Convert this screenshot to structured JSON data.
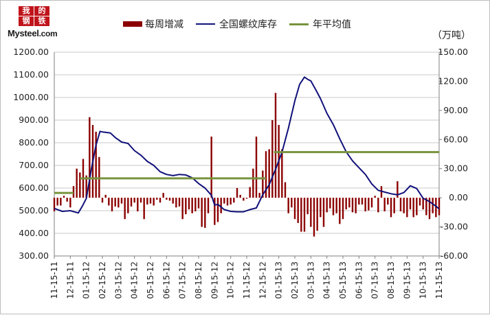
{
  "logo": {
    "cjk_chars": [
      "我",
      "的",
      "钢",
      "铁"
    ],
    "text": "Mysteel",
    "domain": ".com"
  },
  "legend": {
    "bars": "每周增减",
    "line": "全国螺纹库存",
    "avg": "年平均值"
  },
  "unit": "（万吨）",
  "colors": {
    "bars": "#8b0000",
    "line": "#10107a",
    "avg": "#77933c",
    "grid": "#c8c8c8",
    "axis": "#7f7f7f"
  },
  "chart_data": {
    "type": "bar+line",
    "title": "",
    "grid": true,
    "legend_position": "top",
    "y_left": {
      "min": 300,
      "max": 1200,
      "ticks": [
        "300.00",
        "400.00",
        "500.00",
        "600.00",
        "700.00",
        "800.00",
        "900.00",
        "1000.00",
        "1100.00",
        "1200.00"
      ]
    },
    "y_right": {
      "min": -60,
      "max": 150,
      "ticks": [
        "-60.00",
        "-30.00",
        "0.00",
        "30.00",
        "60.00",
        "90.00",
        "120.00",
        "150.00"
      ]
    },
    "x_ticks": [
      "11-15-11",
      "12-15-11",
      "01-15-12",
      "02-15-12",
      "03-15-12",
      "04-15-12",
      "05-15-12",
      "06-15-12",
      "07-15-12",
      "08-15-12",
      "09-15-12",
      "10-15-12",
      "11-15-12",
      "12-15-12",
      "01-15-13",
      "02-15-13",
      "03-15-13",
      "04-15-13",
      "05-15-13",
      "06-15-13",
      "07-15-13",
      "08-15-13",
      "09-15-13",
      "10-15-13",
      "11-15-13"
    ],
    "series": [
      {
        "name": "每周增减",
        "kind": "bar",
        "axis": "right",
        "x": [
          0.0,
          0.2,
          0.4,
          0.6,
          0.8,
          1.0,
          1.2,
          1.4,
          1.6,
          1.8,
          2.0,
          2.2,
          2.4,
          2.6,
          2.8,
          3.0,
          3.2,
          3.4,
          3.6,
          3.8,
          4.0,
          4.2,
          4.4,
          4.6,
          4.8,
          5.0,
          5.2,
          5.4,
          5.6,
          5.8,
          6.0,
          6.2,
          6.4,
          6.6,
          6.8,
          7.0,
          7.2,
          7.4,
          7.6,
          7.8,
          8.0,
          8.2,
          8.4,
          8.6,
          8.8,
          9.0,
          9.2,
          9.4,
          9.6,
          9.8,
          10.0,
          10.2,
          10.4,
          10.6,
          10.8,
          11.0,
          11.2,
          11.4,
          11.6,
          11.8,
          12.0,
          12.2,
          12.4,
          12.6,
          12.8,
          13.0,
          13.2,
          13.4,
          13.6,
          13.8,
          14.0,
          14.2,
          14.4,
          14.6,
          14.8,
          15.0,
          15.2,
          15.4,
          15.6,
          15.8,
          16.0,
          16.2,
          16.4,
          16.6,
          16.8,
          17.0,
          17.2,
          17.4,
          17.6,
          17.8,
          18.0,
          18.2,
          18.4,
          18.6,
          18.8,
          19.0,
          19.2,
          19.4,
          19.6,
          19.8,
          20.0,
          20.2,
          20.4,
          20.6,
          20.8,
          21.0,
          21.2,
          21.4,
          21.6,
          21.8,
          22.0,
          22.2,
          22.4,
          22.6,
          22.8,
          23.0,
          23.2,
          23.4,
          23.6,
          23.8,
          24.0
        ],
        "values": [
          -14,
          -8,
          -8,
          2,
          -4,
          -10,
          12,
          30,
          26,
          40,
          23,
          83,
          75,
          68,
          42,
          -5,
          3,
          -8,
          -14,
          -9,
          -10,
          -6,
          -22,
          -16,
          -9,
          -5,
          -14,
          -5,
          -22,
          -7,
          -6,
          -8,
          -2,
          -5,
          5,
          -2,
          -3,
          -6,
          -10,
          -9,
          -22,
          -17,
          -12,
          -16,
          -14,
          -11,
          -30,
          -31,
          -16,
          63,
          -28,
          -25,
          -16,
          -6,
          -8,
          -7,
          -5,
          10,
          3,
          -3,
          -1,
          11,
          30,
          63,
          5,
          28,
          48,
          50,
          80,
          108,
          75,
          50,
          16,
          -16,
          -10,
          -22,
          -26,
          -35,
          -35,
          -17,
          -30,
          -40,
          -34,
          -20,
          -30,
          -15,
          -11,
          -18,
          -16,
          -27,
          -22,
          -12,
          -10,
          -15,
          -16,
          -7,
          -7,
          -14,
          -13,
          -10,
          2,
          -15,
          12,
          -14,
          -7,
          -20,
          -16,
          17,
          -14,
          -16,
          -20,
          -12,
          -20,
          -18,
          -8,
          -12,
          -18,
          -22,
          -16,
          -20,
          -18
        ]
      },
      {
        "name": "全国螺纹库存",
        "kind": "line",
        "axis": "left",
        "x": [
          0,
          0.5,
          1,
          1.5,
          1.75,
          2,
          2.3,
          2.6,
          2.85,
          3,
          3.5,
          3.8,
          4.2,
          4.6,
          5,
          5.4,
          5.8,
          6.2,
          6.6,
          7,
          7.4,
          7.8,
          8.2,
          8.6,
          9,
          9.4,
          9.8,
          10.0,
          10.2,
          10.6,
          11,
          11.4,
          11.8,
          12.2,
          12.6,
          13,
          13.4,
          13.8,
          14.2,
          14.6,
          15,
          15.3,
          15.6,
          15.8,
          16.0,
          16.3,
          16.6,
          17,
          17.4,
          17.8,
          18.2,
          18.6,
          19,
          19.4,
          19.8,
          20.2,
          20.6,
          21,
          21.4,
          21.8,
          22.2,
          22.6,
          23,
          23.4,
          23.8,
          24
        ],
        "values": [
          510,
          497,
          500,
          490,
          520,
          555,
          680,
          790,
          850,
          848,
          843,
          823,
          803,
          797,
          765,
          745,
          718,
          700,
          672,
          660,
          655,
          660,
          658,
          645,
          620,
          600,
          568,
          525,
          528,
          505,
          497,
          495,
          495,
          505,
          512,
          570,
          615,
          683,
          758,
          865,
          985,
          1058,
          1090,
          1080,
          1073,
          1035,
          995,
          930,
          880,
          818,
          760,
          720,
          690,
          660,
          618,
          590,
          582,
          575,
          570,
          580,
          610,
          598,
          555,
          540,
          520,
          508
        ]
      },
      {
        "name": "年平均值",
        "kind": "step",
        "axis": "right",
        "segments": [
          {
            "x0": 0.0,
            "x1": 1.2,
            "value": 5
          },
          {
            "x0": 1.6,
            "x1": 13.2,
            "value": 20
          },
          {
            "x0": 13.7,
            "x1": 24.0,
            "value": 47
          }
        ]
      }
    ]
  }
}
